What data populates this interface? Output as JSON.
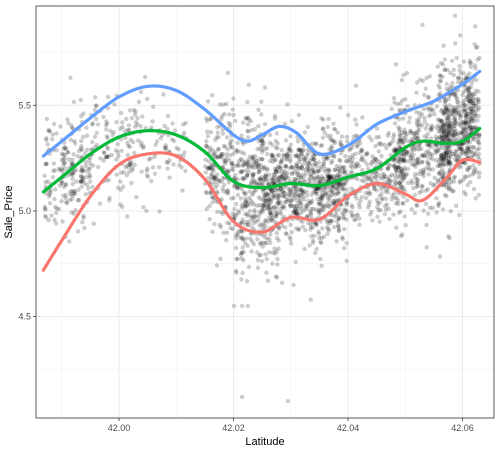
{
  "chart_data": {
    "type": "scatter",
    "title": "",
    "xlabel": "Latitude",
    "ylabel": "Sale_Price",
    "xlim": [
      41.9855,
      42.0655
    ],
    "ylim": [
      4.02,
      5.97
    ],
    "x_ticks": [
      {
        "value": 42.0,
        "label": "42.00"
      },
      {
        "value": 42.02,
        "label": "42.02"
      },
      {
        "value": 42.04,
        "label": "42.04"
      },
      {
        "value": 42.06,
        "label": "42.06"
      }
    ],
    "y_ticks": [
      {
        "value": 4.5,
        "label": "4.5"
      },
      {
        "value": 5.0,
        "label": "5.0"
      },
      {
        "value": 5.5,
        "label": "5.5"
      }
    ],
    "grid": true,
    "legend": "none",
    "point_color": "#000000",
    "point_opacity": 0.2,
    "points_estimated_count": 2900,
    "point_clusters": [
      {
        "x_range": [
          41.987,
          41.995
        ],
        "y_mean": 5.18,
        "y_sd": 0.12,
        "share": 0.07
      },
      {
        "x_range": [
          41.995,
          42.005
        ],
        "y_mean": 5.32,
        "y_sd": 0.13,
        "share": 0.05
      },
      {
        "x_range": [
          42.005,
          42.012
        ],
        "y_mean": 5.3,
        "y_sd": 0.1,
        "share": 0.02
      },
      {
        "x_range": [
          42.015,
          42.025
        ],
        "y_mean": 5.2,
        "y_sd": 0.14,
        "share": 0.12
      },
      {
        "x_range": [
          42.02,
          42.028
        ],
        "y_mean": 4.92,
        "y_sd": 0.14,
        "share": 0.05
      },
      {
        "x_range": [
          42.025,
          42.04
        ],
        "y_mean": 5.12,
        "y_sd": 0.13,
        "share": 0.28
      },
      {
        "x_range": [
          42.04,
          42.05
        ],
        "y_mean": 5.18,
        "y_sd": 0.12,
        "share": 0.1
      },
      {
        "x_range": [
          42.048,
          42.058
        ],
        "y_mean": 5.3,
        "y_sd": 0.15,
        "share": 0.13
      },
      {
        "x_range": [
          42.056,
          42.063
        ],
        "y_mean": 5.4,
        "y_sd": 0.15,
        "share": 0.18
      }
    ],
    "outliers": [
      {
        "x": 42.0215,
        "y": 4.12
      },
      {
        "x": 42.0295,
        "y": 4.1
      },
      {
        "x": 42.0215,
        "y": 4.55
      },
      {
        "x": 42.0225,
        "y": 4.55
      },
      {
        "x": 42.0335,
        "y": 4.58
      },
      {
        "x": 42.0305,
        "y": 4.65
      },
      {
        "x": 42.0285,
        "y": 4.66
      },
      {
        "x": 42.053,
        "y": 5.88
      },
      {
        "x": 41.9915,
        "y": 5.63
      }
    ],
    "series": [
      {
        "color": "#619CFF",
        "x": [
          41.9868,
          41.99,
          41.995,
          42.0,
          42.005,
          42.01,
          42.015,
          42.02,
          42.0225,
          42.025,
          42.028,
          42.031,
          42.035,
          42.04,
          42.045,
          42.05,
          42.055,
          42.06,
          42.063
        ],
        "y": [
          5.26,
          5.33,
          5.44,
          5.54,
          5.59,
          5.57,
          5.48,
          5.36,
          5.33,
          5.36,
          5.4,
          5.37,
          5.27,
          5.31,
          5.41,
          5.47,
          5.52,
          5.6,
          5.66
        ]
      },
      {
        "color": "#00BA38",
        "x": [
          41.9868,
          41.99,
          41.995,
          42.0,
          42.005,
          42.01,
          42.015,
          42.02,
          42.025,
          42.03,
          42.035,
          42.04,
          42.045,
          42.05,
          42.053,
          42.057,
          42.06,
          42.063
        ],
        "y": [
          5.09,
          5.16,
          5.27,
          5.35,
          5.38,
          5.36,
          5.28,
          5.14,
          5.11,
          5.13,
          5.12,
          5.16,
          5.2,
          5.3,
          5.33,
          5.32,
          5.33,
          5.39
        ]
      },
      {
        "color": "#F8766D",
        "x": [
          41.9868,
          41.99,
          41.995,
          42.0,
          42.005,
          42.01,
          42.015,
          42.02,
          42.025,
          42.03,
          42.035,
          42.04,
          42.045,
          42.05,
          42.053,
          42.057,
          42.06,
          42.063
        ],
        "y": [
          4.72,
          4.86,
          5.07,
          5.22,
          5.27,
          5.26,
          5.15,
          4.95,
          4.9,
          4.97,
          4.96,
          5.07,
          5.13,
          5.08,
          5.05,
          5.15,
          5.24,
          5.23
        ]
      }
    ]
  }
}
